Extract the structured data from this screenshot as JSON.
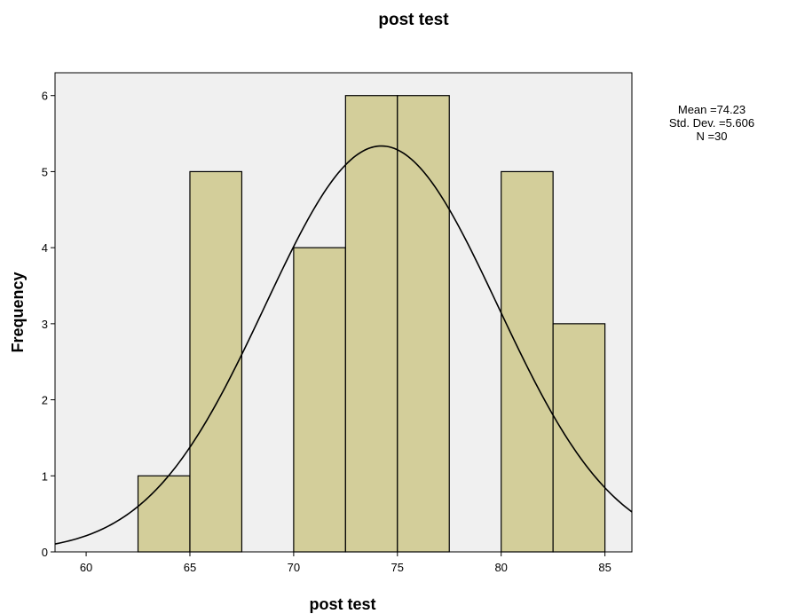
{
  "chart_data": {
    "type": "bar",
    "subtype": "histogram",
    "title": "post test",
    "xlabel": "post test",
    "ylabel": "Frequency",
    "xlim": [
      58.5,
      86.3
    ],
    "ylim": [
      0,
      6.3
    ],
    "x_ticks": [
      60,
      65,
      70,
      75,
      80,
      85
    ],
    "y_ticks": [
      0,
      1,
      2,
      3,
      4,
      5,
      6
    ],
    "bins": [
      {
        "start": 62.5,
        "end": 65.0,
        "count": 1
      },
      {
        "start": 65.0,
        "end": 67.5,
        "count": 5
      },
      {
        "start": 67.5,
        "end": 70.0,
        "count": 0
      },
      {
        "start": 70.0,
        "end": 72.5,
        "count": 4
      },
      {
        "start": 72.5,
        "end": 75.0,
        "count": 6
      },
      {
        "start": 75.0,
        "end": 77.5,
        "count": 6
      },
      {
        "start": 77.5,
        "end": 80.0,
        "count": 0
      },
      {
        "start": 80.0,
        "end": 82.5,
        "count": 5
      },
      {
        "start": 82.5,
        "end": 85.0,
        "count": 3
      }
    ],
    "normal_curve": {
      "mean": 74.23,
      "sd": 5.606,
      "n": 30,
      "bin_width": 2.5
    },
    "stats": [
      "Mean =74.23",
      "Std. Dev. =5.606",
      "N =30"
    ],
    "grid": false,
    "legend_position": "top-right",
    "colors": {
      "plot_background": "#f0f0f0",
      "bar_fill": "#d3ce9a",
      "bar_stroke": "#000000",
      "curve": "#000000"
    }
  }
}
